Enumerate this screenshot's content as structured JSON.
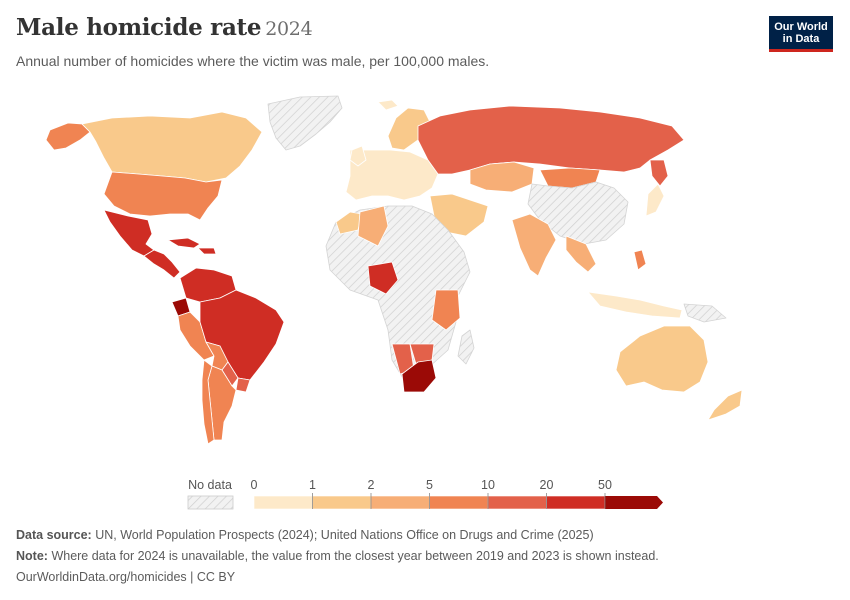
{
  "header": {
    "title": "Male homicide rate",
    "year": "2024",
    "subtitle": "Annual number of homicides where the victim was male, per 100,000 males.",
    "logo_line1": "Our World",
    "logo_line2": "in Data"
  },
  "legend": {
    "no_data_label": "No data",
    "ticks": [
      "0",
      "1",
      "2",
      "5",
      "10",
      "20",
      "50"
    ],
    "colors": [
      "#fde9c9",
      "#f9c98b",
      "#f7ae76",
      "#f08452",
      "#e3614a",
      "#cf2d24",
      "#9b0a06"
    ],
    "no_data_color": "#e9e9e9"
  },
  "footer": {
    "source_label": "Data source:",
    "source_text": "UN, World Population Prospects (2024); United Nations Office on Drugs and Crime (2025)",
    "note_label": "Note:",
    "note_text": "Where data for 2024 is unavailable, the value from the closest year between 2019 and 2023 is shown instead.",
    "url_text": "OurWorldinData.org/homicides | CC BY"
  },
  "chart_data": {
    "type": "choropleth",
    "metric": "Male homicide rate per 100,000 males",
    "year": 2024,
    "bins": [
      "0-1",
      "1-2",
      "2-5",
      "5-10",
      "10-20",
      "20-50",
      "50+"
    ],
    "regions": [
      {
        "name": "Canada",
        "bin": "1-2"
      },
      {
        "name": "United States",
        "bin": "5-10"
      },
      {
        "name": "Alaska",
        "bin": "5-10"
      },
      {
        "name": "Greenland",
        "bin": "no data"
      },
      {
        "name": "Mexico",
        "bin": "20-50"
      },
      {
        "name": "Central America",
        "bin": "20-50"
      },
      {
        "name": "Caribbean",
        "bin": "20-50"
      },
      {
        "name": "Colombia",
        "bin": "20-50"
      },
      {
        "name": "Venezuela",
        "bin": "20-50"
      },
      {
        "name": "Ecuador",
        "bin": "50+"
      },
      {
        "name": "Brazil",
        "bin": "20-50"
      },
      {
        "name": "Peru",
        "bin": "5-10"
      },
      {
        "name": "Bolivia",
        "bin": "5-10"
      },
      {
        "name": "Paraguay",
        "bin": "10-20"
      },
      {
        "name": "Uruguay",
        "bin": "10-20"
      },
      {
        "name": "Argentina",
        "bin": "5-10"
      },
      {
        "name": "Chile",
        "bin": "5-10"
      },
      {
        "name": "Europe",
        "bin": "0-1"
      },
      {
        "name": "Scandinavia",
        "bin": "1-2"
      },
      {
        "name": "Russia",
        "bin": "10-20"
      },
      {
        "name": "Kazakhstan",
        "bin": "2-5"
      },
      {
        "name": "Mongolia",
        "bin": "5-10"
      },
      {
        "name": "China",
        "bin": "no data"
      },
      {
        "name": "Japan",
        "bin": "0-1"
      },
      {
        "name": "India",
        "bin": "2-5"
      },
      {
        "name": "Middle East",
        "bin": "1-2"
      },
      {
        "name": "Algeria",
        "bin": "2-5"
      },
      {
        "name": "Nigeria",
        "bin": "20-50"
      },
      {
        "name": "East Africa",
        "bin": "5-10"
      },
      {
        "name": "Namibia",
        "bin": "10-20"
      },
      {
        "name": "South Africa",
        "bin": "50+"
      },
      {
        "name": "Philippines",
        "bin": "5-10"
      },
      {
        "name": "Indonesia",
        "bin": "0-1"
      },
      {
        "name": "Australia",
        "bin": "1-2"
      },
      {
        "name": "New Zealand",
        "bin": "1-2"
      }
    ]
  }
}
